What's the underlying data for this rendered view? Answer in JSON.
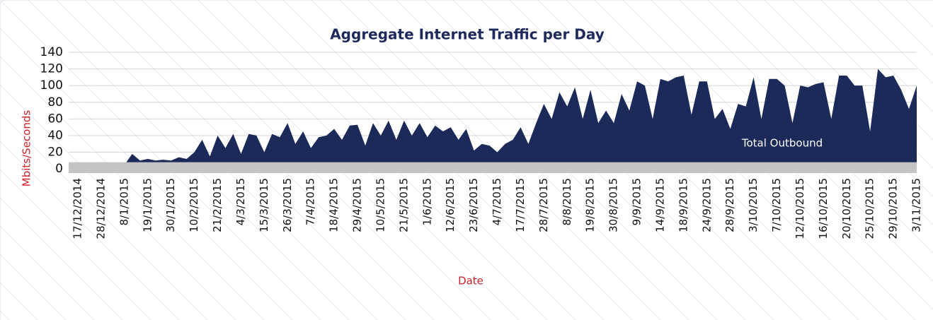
{
  "chart_data": {
    "type": "area",
    "title": "Aggregate Internet Traffic per Day",
    "ylabel": "Mbits/Seconds",
    "xlabel": "Date",
    "annotation": "Total Outbound",
    "categories": [
      "17/12/2014",
      null,
      null,
      "28/12/2014",
      null,
      null,
      "8/1/2015",
      null,
      null,
      "19/1/2015",
      null,
      null,
      "30/1/2015",
      null,
      null,
      "10/2/2015",
      null,
      null,
      "21/2/2015",
      null,
      null,
      "4/3/2015",
      null,
      null,
      "15/3/2015",
      null,
      null,
      "26/3/2015",
      null,
      null,
      "7/4/2015",
      null,
      null,
      "18/4/2015",
      null,
      null,
      "29/4/2015",
      null,
      null,
      "10/5/2015",
      null,
      null,
      "21/5/2015",
      null,
      null,
      "1/6/2015",
      null,
      null,
      "12/6/2015",
      null,
      null,
      "23/6/2015",
      null,
      null,
      "4/7/2015",
      null,
      null,
      "17/7/2015",
      null,
      null,
      "28/7/2015",
      null,
      null,
      "8/8/2015",
      null,
      null,
      "19/8/2015",
      null,
      null,
      "30/8/2015",
      null,
      null,
      "9/9/2015",
      null,
      null,
      "14/9/2015",
      null,
      null,
      "18/9/2015",
      null,
      null,
      "24/9/2015",
      null,
      null,
      "28/9/2015",
      null,
      null,
      "3/10/2015",
      null,
      null,
      "7/10/2015",
      null,
      null,
      "12/10/2015",
      null,
      null,
      "16/10/2015",
      null,
      null,
      "20/10/2015",
      null,
      null,
      "25/10/2015",
      null,
      null,
      "29/10/2015",
      null,
      null,
      "3/11/2015"
    ],
    "series": [
      {
        "color": "#1c2a5a",
        "values": [
          5,
          5,
          5,
          5,
          5,
          5,
          5,
          18,
          10,
          12,
          10,
          11,
          10,
          14,
          12,
          20,
          35,
          15,
          40,
          25,
          42,
          18,
          42,
          40,
          20,
          42,
          38,
          55,
          30,
          45,
          25,
          38,
          40,
          48,
          35,
          52,
          53,
          28,
          55,
          40,
          58,
          35,
          58,
          40,
          55,
          38,
          52,
          45,
          50,
          35,
          48,
          22,
          30,
          28,
          20,
          30,
          35,
          50,
          30,
          55,
          78,
          60,
          92,
          75,
          98,
          60,
          95,
          55,
          70,
          55,
          90,
          70,
          105,
          100,
          60,
          108,
          105,
          110,
          112,
          65,
          105,
          105,
          60,
          72,
          48,
          78,
          75,
          110,
          60,
          108,
          108,
          100,
          55,
          100,
          98,
          102,
          104,
          60,
          112,
          112,
          100,
          100,
          45,
          120,
          110,
          112,
          95,
          72,
          100
        ]
      },
      {
        "color": "#c4c4c4",
        "values": [
          8,
          8,
          8,
          8,
          8,
          8,
          8,
          8,
          8,
          8,
          8,
          8,
          8,
          8,
          8,
          8,
          8,
          8,
          8,
          8,
          8,
          8,
          8,
          8,
          8,
          8,
          8,
          8,
          8,
          8,
          8,
          8,
          8,
          8,
          8,
          8,
          8,
          8,
          8,
          8,
          8,
          8,
          8,
          8,
          8,
          8,
          8,
          8,
          8,
          8,
          8,
          8,
          8,
          8,
          8,
          8,
          8,
          8,
          8,
          8,
          8,
          8,
          8,
          8,
          8,
          8,
          8,
          8,
          8,
          8,
          8,
          8,
          8,
          8,
          8,
          8,
          8,
          8,
          8,
          8,
          8,
          8,
          8,
          8,
          8,
          8,
          8,
          8,
          8,
          8,
          8,
          8,
          8,
          8,
          8,
          8,
          8,
          8,
          8,
          8,
          8,
          8,
          8,
          8,
          8,
          8,
          8,
          8,
          8
        ]
      }
    ],
    "ylim": [
      -5,
      140
    ],
    "yticks": [
      0,
      20,
      40,
      60,
      80,
      100,
      120,
      140
    ],
    "grid": true
  }
}
